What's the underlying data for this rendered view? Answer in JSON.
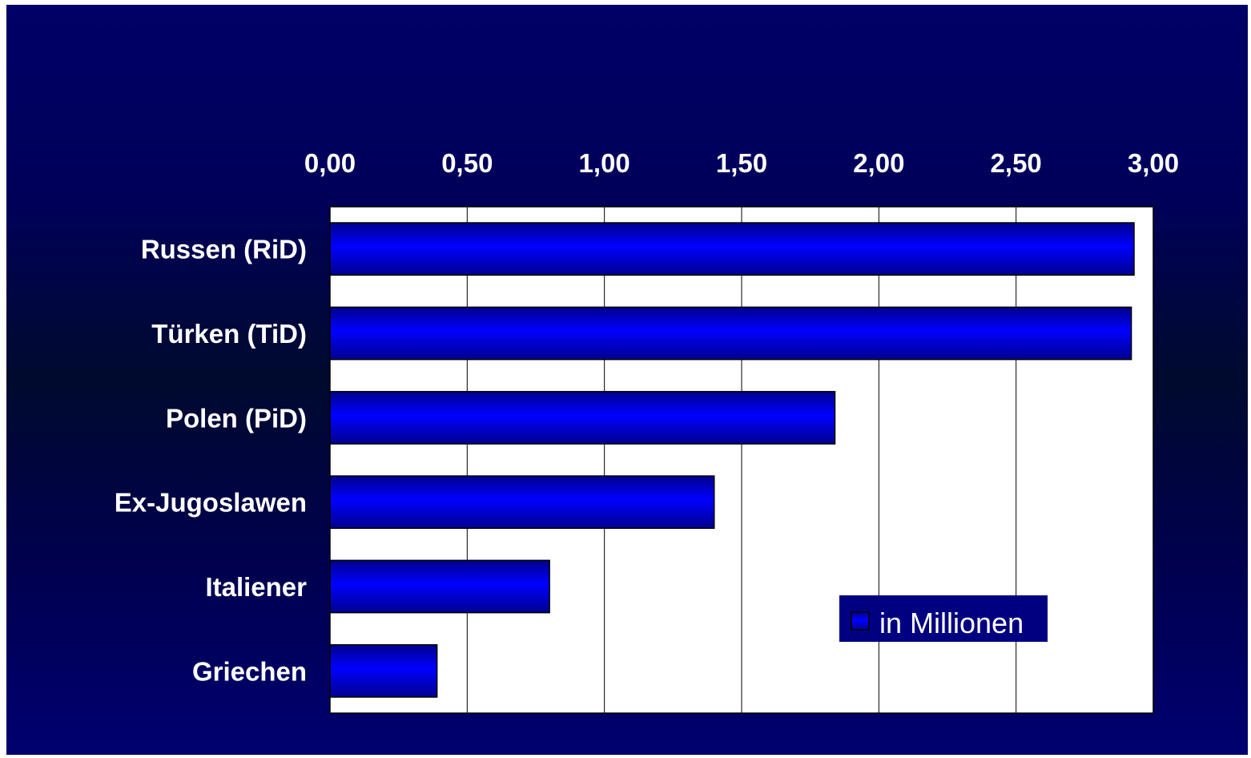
{
  "chart_data": {
    "type": "bar",
    "orientation": "horizontal",
    "categories": [
      "Russen (RiD)",
      "Türken (TiD)",
      "Polen (PiD)",
      "Ex-Jugoslawen",
      "Italiener",
      "Griechen"
    ],
    "series": [
      {
        "name": "in Millionen",
        "values": [
          2.93,
          2.92,
          1.84,
          1.4,
          0.8,
          0.39
        ]
      }
    ],
    "xlim": [
      0,
      3
    ],
    "x_ticks": [
      "0,00",
      "0,50",
      "1,00",
      "1,50",
      "2,00",
      "2,50",
      "3,00"
    ],
    "x_tick_values": [
      0,
      0.5,
      1,
      1.5,
      2,
      2.5,
      3
    ],
    "x_axis_position": "top",
    "grid": true,
    "legend_position": "bottom-right",
    "colors": {
      "background_top": "#000066",
      "background_mid": "#000a2e",
      "plot_area": "#ffffff",
      "bar": "#0000ff",
      "bar_dark": "#00008c",
      "legend_bg": "#000080",
      "text": "#ffffff"
    }
  }
}
